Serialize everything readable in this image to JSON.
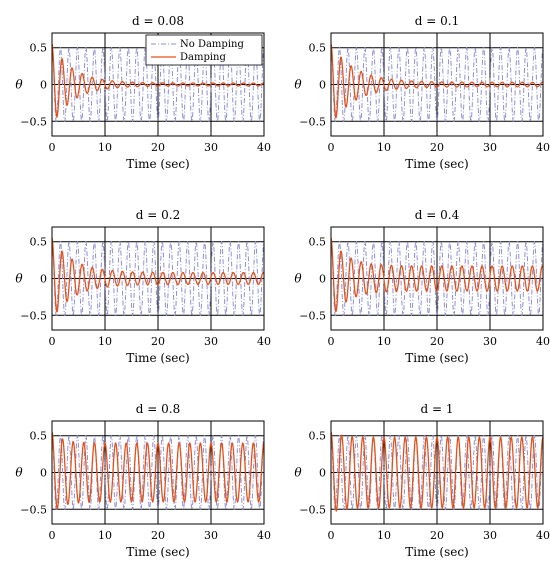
{
  "figure": {
    "xlabel": "Time (sec)",
    "ylabel": "θ"
  },
  "legend": [
    "No Damping",
    "Damping"
  ],
  "colors": {
    "no_damping": "#8f8fd6",
    "damping": "#e2531c",
    "grid": "#000000"
  },
  "chart_data": [
    {
      "type": "line",
      "title": "d = 0.08",
      "xlabel": "Time (sec)",
      "ylabel": "θ",
      "xlim": [
        0,
        40
      ],
      "ylim": [
        -0.7,
        0.7
      ],
      "xticks": [
        0,
        10,
        20,
        30,
        40
      ],
      "yticks": [
        -0.5,
        0,
        0.5
      ],
      "ytick_labels": [
        "−0.5",
        "0",
        "0.5"
      ],
      "grid": true,
      "legend_position": "top-right",
      "series": [
        {
          "name": "No Damping",
          "amplitude": 0.5,
          "period": 1.6,
          "style": "dash-dot"
        },
        {
          "name": "Damping",
          "initial_value": 0.55,
          "steady_amplitude": 0.02,
          "decay_time": 4,
          "period": 1.9,
          "style": "solid"
        }
      ]
    },
    {
      "type": "line",
      "title": "d = 0.1",
      "xlabel": "Time (sec)",
      "ylabel": "θ",
      "xlim": [
        0,
        40
      ],
      "ylim": [
        -0.7,
        0.7
      ],
      "xticks": [
        0,
        10,
        20,
        30,
        40
      ],
      "yticks": [
        -0.5,
        0,
        0.5
      ],
      "ytick_labels": [
        "−0.5",
        "0",
        "0.5"
      ],
      "grid": true,
      "series": [
        {
          "name": "No Damping",
          "amplitude": 0.5,
          "period": 1.6,
          "style": "dash-dot"
        },
        {
          "name": "Damping",
          "initial_value": 0.55,
          "steady_amplitude": 0.03,
          "decay_time": 4.5,
          "period": 1.9,
          "style": "solid"
        }
      ]
    },
    {
      "type": "line",
      "title": "d = 0.2",
      "xlabel": "Time (sec)",
      "ylabel": "θ",
      "xlim": [
        0,
        40
      ],
      "ylim": [
        -0.7,
        0.7
      ],
      "xticks": [
        0,
        10,
        20,
        30,
        40
      ],
      "yticks": [
        -0.5,
        0,
        0.5
      ],
      "ytick_labels": [
        "−0.5",
        "0",
        "0.5"
      ],
      "grid": true,
      "series": [
        {
          "name": "No Damping",
          "amplitude": 0.5,
          "period": 1.6,
          "style": "dash-dot"
        },
        {
          "name": "Damping",
          "initial_value": 0.55,
          "steady_amplitude": 0.08,
          "decay_time": 4,
          "period": 1.9,
          "style": "solid"
        }
      ]
    },
    {
      "type": "line",
      "title": "d = 0.4",
      "xlabel": "Time (sec)",
      "ylabel": "θ",
      "xlim": [
        0,
        40
      ],
      "ylim": [
        -0.7,
        0.7
      ],
      "xticks": [
        0,
        10,
        20,
        30,
        40
      ],
      "yticks": [
        -0.5,
        0,
        0.5
      ],
      "ytick_labels": [
        "−0.5",
        "0",
        "0.5"
      ],
      "grid": true,
      "series": [
        {
          "name": "No Damping",
          "amplitude": 0.5,
          "period": 1.6,
          "style": "dash-dot"
        },
        {
          "name": "Damping",
          "initial_value": 0.55,
          "steady_amplitude": 0.17,
          "decay_time": 3,
          "period": 1.9,
          "style": "solid"
        }
      ]
    },
    {
      "type": "line",
      "title": "d = 0.8",
      "xlabel": "Time (sec)",
      "ylabel": "θ",
      "xlim": [
        0,
        40
      ],
      "ylim": [
        -0.7,
        0.7
      ],
      "xticks": [
        0,
        10,
        20,
        30,
        40
      ],
      "yticks": [
        -0.5,
        0,
        0.5
      ],
      "ytick_labels": [
        "−0.5",
        "0",
        "0.5"
      ],
      "grid": true,
      "series": [
        {
          "name": "No Damping",
          "amplitude": 0.5,
          "period": 1.6,
          "style": "dash-dot"
        },
        {
          "name": "Damping",
          "initial_value": 0.55,
          "steady_amplitude": 0.4,
          "decay_time": 2,
          "period": 2.0,
          "style": "solid"
        }
      ]
    },
    {
      "type": "line",
      "title": "d = 1",
      "xlabel": "Time (sec)",
      "ylabel": "θ",
      "xlim": [
        0,
        40
      ],
      "ylim": [
        -0.7,
        0.7
      ],
      "xticks": [
        0,
        10,
        20,
        30,
        40
      ],
      "yticks": [
        -0.5,
        0,
        0.5
      ],
      "ytick_labels": [
        "−0.5",
        "0",
        "0.5"
      ],
      "grid": true,
      "series": [
        {
          "name": "No Damping",
          "amplitude": 0.5,
          "period": 1.6,
          "style": "dash-dot"
        },
        {
          "name": "Damping",
          "initial_value": 0.55,
          "steady_amplitude": 0.48,
          "decay_time": 2,
          "period": 2.0,
          "style": "solid"
        }
      ]
    }
  ]
}
